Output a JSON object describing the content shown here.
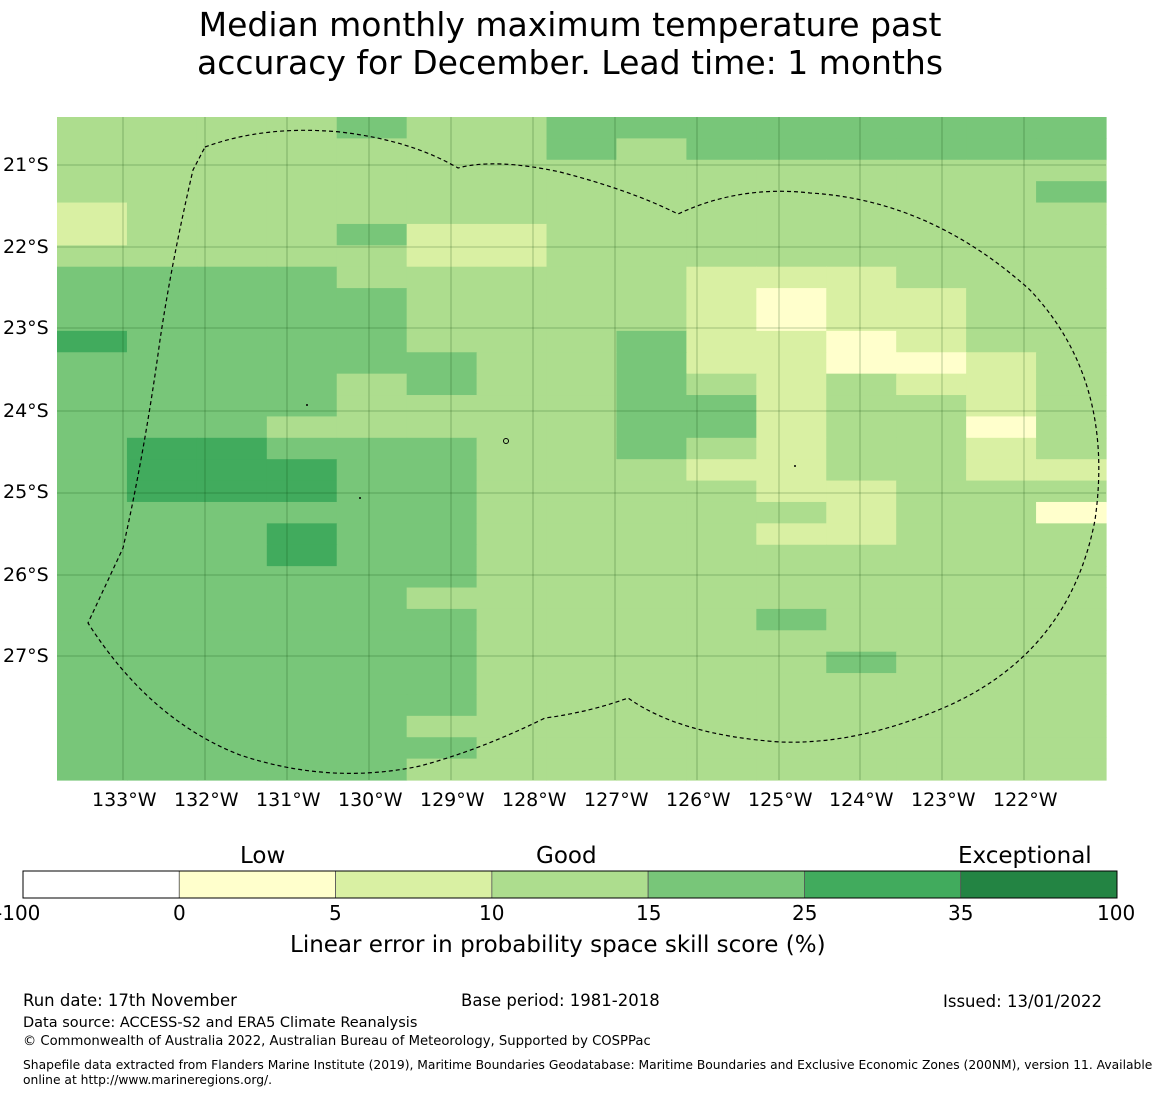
{
  "title_line1": "Median monthly maximum temperature past",
  "title_line2": "accuracy for December. Lead time: 1 months",
  "map": {
    "lat_labels": [
      "21°S",
      "22°S",
      "23°S",
      "24°S",
      "25°S",
      "26°S",
      "27°S"
    ],
    "lon_labels": [
      "133°W",
      "132°W",
      "131°W",
      "130°W",
      "129°W",
      "128°W",
      "127°W",
      "126°W",
      "125°W",
      "124°W",
      "123°W",
      "122°W"
    ],
    "grid_rows": [
      "333343344444444",
      "333333343444444",
      "333333333333333",
      "333333333333334",
      "233333333333333",
      "233342233333333",
      "333332233333333",
      "444433333222333",
      "444443333212233",
      "444443333212233",
      "544443334221233",
      "444444334221123",
      "444434334323223",
      "444433334423323",
      "444333334423313",
      "455444334323323",
      "455544333223322",
      "455544333322333",
      "444444333332331",
      "444544333322333",
      "444544333333333",
      "444444333333333",
      "444443333333333",
      "444444333343333",
      "444444333333333",
      "444444333334333",
      "444444333333333",
      "444444333333333",
      "444443333333333",
      "444444333333333",
      "444443333333333"
    ]
  },
  "legend": {
    "category_labels": [
      "Low",
      "Good",
      "Exceptional"
    ],
    "ticks": [
      "-100",
      "0",
      "5",
      "10",
      "15",
      "25",
      "35",
      "100"
    ],
    "colors": [
      "#ffffff",
      "#ffffcc",
      "#d9f0a3",
      "#addd8e",
      "#78c679",
      "#41ab5d",
      "#238443"
    ],
    "xlabel": "Linear error in probability space skill score (%)"
  },
  "footer": {
    "run_date": "Run date: 17th November",
    "base_period": "Base period: 1981-2018",
    "issued": "Issued: 13/01/2022",
    "data_source": "Data source: ACCESS-S2 and ERA5 Climate Reanalysis",
    "copyright": "© Commonwealth of Australia 2022, Australian Bureau of Meteorology, Supported by COSPPac",
    "shapefile_line1": "Shapefile data extracted from Flanders Marine Institute (2019), Maritime Boundaries Geodatabase: Maritime Boundaries and Exclusive Economic Zones (200NM), version 11. Available",
    "shapefile_line2": "online at http://www.marineregions.org/."
  }
}
